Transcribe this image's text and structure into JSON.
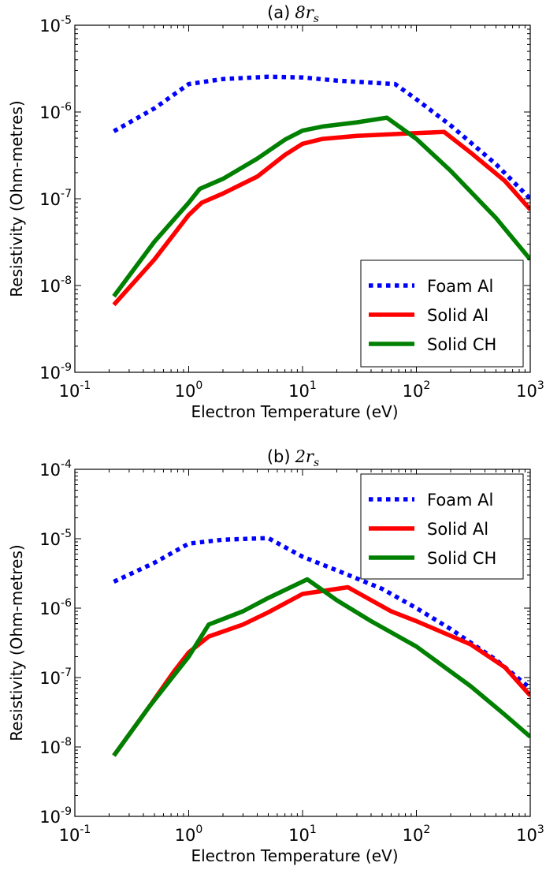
{
  "chart_data": [
    {
      "type": "line",
      "title_prefix": "(a)",
      "title_math": "8r",
      "title_sub": "s",
      "xlabel": "Electron Temperature (eV)",
      "ylabel": "Resistivity (Ohm-metres)",
      "xscale": "log",
      "yscale": "log",
      "xlim": [
        0.1,
        1000
      ],
      "ylim": [
        1e-09,
        1e-05
      ],
      "xtick_labels": [
        {
          "base": "10",
          "exp": "-1"
        },
        {
          "base": "10",
          "exp": "0"
        },
        {
          "base": "10",
          "exp": "1"
        },
        {
          "base": "10",
          "exp": "2"
        },
        {
          "base": "10",
          "exp": "3"
        }
      ],
      "ytick_labels": [
        {
          "base": "10",
          "exp": "-9"
        },
        {
          "base": "10",
          "exp": "-8"
        },
        {
          "base": "10",
          "exp": "-7"
        },
        {
          "base": "10",
          "exp": "-6"
        },
        {
          "base": "10",
          "exp": "-5"
        }
      ],
      "legend_position": "lower-right",
      "series": [
        {
          "name": "Foam Al",
          "color": "#0000ff",
          "style": "dotted",
          "x": [
            0.22,
            0.5,
            1.0,
            2.0,
            5.0,
            10,
            20,
            65,
            100,
            200,
            500,
            1000
          ],
          "y": [
            6e-07,
            1.1e-06,
            2.1e-06,
            2.4e-06,
            2.55e-06,
            2.5e-06,
            2.3e-06,
            2.1e-06,
            1.4e-06,
            7e-07,
            2.5e-07,
            1e-07
          ]
        },
        {
          "name": "Solid Al",
          "color": "#ff0000",
          "style": "solid",
          "x": [
            0.22,
            0.5,
            1.0,
            1.3,
            2.0,
            4.0,
            7.0,
            10,
            15,
            30,
            70,
            175,
            300,
            600,
            1000
          ],
          "y": [
            6e-09,
            2e-08,
            6.5e-08,
            9e-08,
            1.15e-07,
            1.8e-07,
            3.2e-07,
            4.3e-07,
            4.9e-07,
            5.3e-07,
            5.6e-07,
            5.9e-07,
            3.4e-07,
            1.6e-07,
            7.5e-08
          ]
        },
        {
          "name": "Solid CH",
          "color": "#008000",
          "style": "solid",
          "x": [
            0.22,
            0.5,
            1.0,
            1.25,
            2.0,
            4.0,
            7.0,
            10,
            15,
            30,
            55,
            100,
            200,
            500,
            1000
          ],
          "y": [
            7.5e-09,
            3.2e-08,
            9e-08,
            1.3e-07,
            1.7e-07,
            2.9e-07,
            4.8e-07,
            6.1e-07,
            6.8e-07,
            7.6e-07,
            8.6e-07,
            4.9e-07,
            2.1e-07,
            6e-08,
            2e-08
          ]
        }
      ]
    },
    {
      "type": "line",
      "title_prefix": "(b)",
      "title_math": "2r",
      "title_sub": "s",
      "xlabel": "Electron Temperature (eV)",
      "ylabel": "Resistivity (Ohm-metres)",
      "xscale": "log",
      "yscale": "log",
      "xlim": [
        0.1,
        1000
      ],
      "ylim": [
        1e-09,
        0.0001
      ],
      "xtick_labels": [
        {
          "base": "10",
          "exp": "-1"
        },
        {
          "base": "10",
          "exp": "0"
        },
        {
          "base": "10",
          "exp": "1"
        },
        {
          "base": "10",
          "exp": "2"
        },
        {
          "base": "10",
          "exp": "3"
        }
      ],
      "ytick_labels": [
        {
          "base": "10",
          "exp": "-9"
        },
        {
          "base": "10",
          "exp": "-8"
        },
        {
          "base": "10",
          "exp": "-7"
        },
        {
          "base": "10",
          "exp": "-6"
        },
        {
          "base": "10",
          "exp": "-5"
        },
        {
          "base": "10",
          "exp": "-4"
        }
      ],
      "legend_position": "upper-right",
      "series": [
        {
          "name": "Foam Al",
          "color": "#0000ff",
          "style": "dotted",
          "x": [
            0.22,
            0.5,
            1.0,
            2.0,
            5.0,
            10,
            20,
            50,
            100,
            200,
            500,
            1000
          ],
          "y": [
            2.4e-06,
            4.5e-06,
            8.5e-06,
            9.7e-06,
            1.02e-05,
            5.5e-06,
            3.5e-06,
            1.9e-06,
            1e-06,
            5e-07,
            1.8e-07,
            7e-08
          ]
        },
        {
          "name": "Solid Al",
          "color": "#ff0000",
          "style": "solid",
          "x": [
            0.22,
            0.45,
            0.75,
            1.0,
            1.5,
            3.0,
            5.0,
            10,
            25,
            60,
            100,
            300,
            600,
            1000
          ],
          "y": [
            7.5e-09,
            3.8e-08,
            1.25e-07,
            2.3e-07,
            3.9e-07,
            5.8e-07,
            8.7e-07,
            1.6e-06,
            2e-06,
            9e-07,
            6.5e-07,
            3e-07,
            1.4e-07,
            5.5e-08
          ]
        },
        {
          "name": "Solid CH",
          "color": "#008000",
          "style": "solid",
          "x": [
            0.22,
            0.45,
            0.75,
            1.0,
            1.5,
            3.0,
            5.0,
            11,
            20,
            40,
            100,
            300,
            600,
            1000
          ],
          "y": [
            7.5e-09,
            3.8e-08,
            1.1e-07,
            2e-07,
            5.8e-07,
            9e-07,
            1.4e-06,
            2.6e-06,
            1.3e-06,
            6.5e-07,
            2.8e-07,
            7.5e-08,
            2.9e-08,
            1.4e-08
          ]
        }
      ]
    }
  ]
}
